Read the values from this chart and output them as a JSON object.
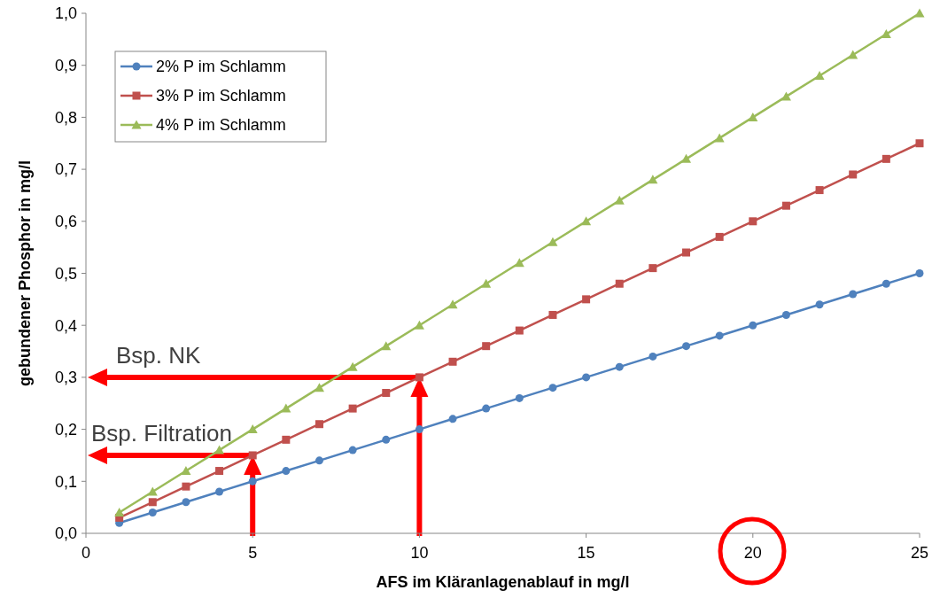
{
  "chart_data": {
    "type": "line",
    "xlabel": "AFS im Kläranlagenablauf in mg/l",
    "ylabel": "gebundener Phosphor in mg/l",
    "x": [
      1,
      2,
      3,
      4,
      5,
      6,
      7,
      8,
      9,
      10,
      11,
      12,
      13,
      14,
      15,
      16,
      17,
      18,
      19,
      20,
      21,
      22,
      23,
      24,
      25
    ],
    "series": [
      {
        "name": "2% P im Schlamm",
        "color": "#4f81bd",
        "marker": "circle",
        "values": [
          0.02,
          0.04,
          0.06,
          0.08,
          0.1,
          0.12,
          0.14,
          0.16,
          0.18,
          0.2,
          0.22,
          0.24,
          0.26,
          0.28,
          0.3,
          0.32,
          0.34,
          0.36,
          0.38,
          0.4,
          0.42,
          0.44,
          0.46,
          0.48,
          0.5
        ]
      },
      {
        "name": "3% P im Schlamm",
        "color": "#c0504d",
        "marker": "square",
        "values": [
          0.03,
          0.06,
          0.09,
          0.12,
          0.15,
          0.18,
          0.21,
          0.24,
          0.27,
          0.3,
          0.33,
          0.36,
          0.39,
          0.42,
          0.45,
          0.48,
          0.51,
          0.54,
          0.57,
          0.6,
          0.63,
          0.66,
          0.69,
          0.72,
          0.75
        ]
      },
      {
        "name": "4% P im Schlamm",
        "color": "#9bbb59",
        "marker": "triangle",
        "values": [
          0.04,
          0.08,
          0.12,
          0.16,
          0.2,
          0.24,
          0.28,
          0.32,
          0.36,
          0.4,
          0.44,
          0.48,
          0.52,
          0.56,
          0.6,
          0.64,
          0.68,
          0.72,
          0.76,
          0.8,
          0.84,
          0.88,
          0.92,
          0.96,
          1.0
        ]
      }
    ],
    "xlim": [
      0,
      25
    ],
    "xticks": [
      0,
      5,
      10,
      15,
      20,
      25
    ],
    "ylim": [
      0,
      1
    ],
    "yticks": [
      {
        "value": 0,
        "label": "0,0"
      },
      {
        "value": 0.1,
        "label": "0,1"
      },
      {
        "value": 0.2,
        "label": "0,2"
      },
      {
        "value": 0.3,
        "label": "0,3"
      },
      {
        "value": 0.4,
        "label": "0,4"
      },
      {
        "value": 0.5,
        "label": "0,5"
      },
      {
        "value": 0.6,
        "label": "0,6"
      },
      {
        "value": 0.7,
        "label": "0,7"
      },
      {
        "value": 0.8,
        "label": "0,8"
      },
      {
        "value": 0.9,
        "label": "0,9"
      },
      {
        "value": 1,
        "label": "1,0"
      }
    ],
    "annotations": [
      {
        "text": "Bsp. NK",
        "x": 10,
        "y": 0.3
      },
      {
        "text": "Bsp. Filtration",
        "x": 5,
        "y": 0.15
      }
    ],
    "legend": "top left",
    "grid": false
  }
}
